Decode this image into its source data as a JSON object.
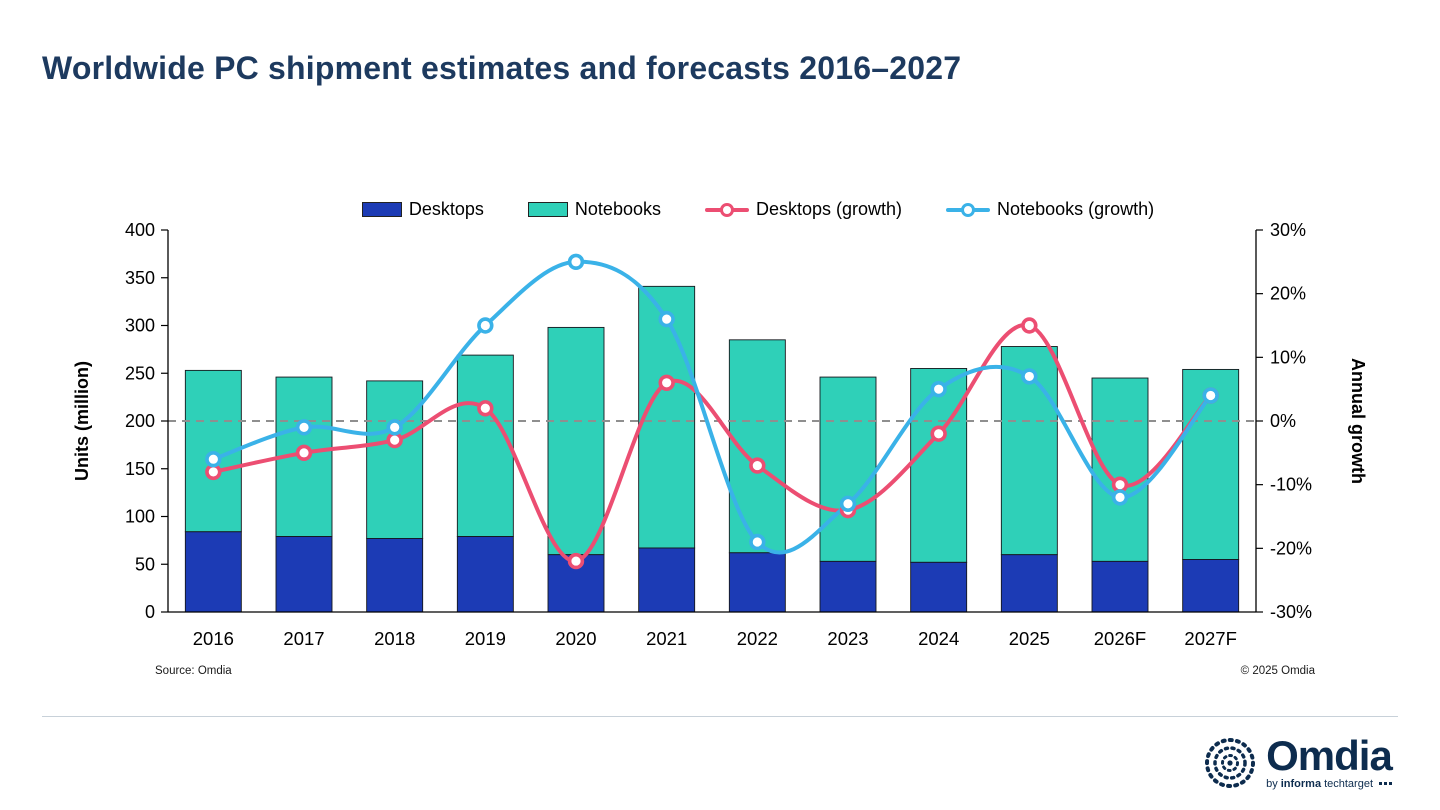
{
  "page": {
    "title": "Worldwide PC shipment estimates and forecasts 2016–2027",
    "source": "Source: Omdia",
    "copyright": "© 2025 Omdia"
  },
  "logo": {
    "wordmark": "Omdia",
    "by": "by",
    "informa": "informa",
    "techtarget": "techtarget"
  },
  "colors": {
    "title_text": "#1d3a5f",
    "brand_navy": "#0d2c4e",
    "desktops_bar": "#1c3bb5",
    "notebooks_bar": "#2fd0b8",
    "desktops_growth_line": "#ec4e72",
    "notebooks_growth_line": "#3ab2e8",
    "zero_line": "#8f8f8f"
  },
  "chart_data": {
    "type": "bar",
    "subtype": "stacked-bars-with-growth-lines",
    "title": "Worldwide PC shipment estimates and forecasts 2016–2027",
    "categories": [
      "2016",
      "2017",
      "2018",
      "2019",
      "2020",
      "2021",
      "2022",
      "2023",
      "2024",
      "2025",
      "2026F",
      "2027F"
    ],
    "bar_series": [
      {
        "name": "Desktops",
        "type": "bar",
        "axis": "left",
        "color": "#1c3bb5",
        "values": [
          84,
          79,
          77,
          79,
          60,
          67,
          62,
          53,
          52,
          60,
          53,
          55
        ]
      },
      {
        "name": "Notebooks",
        "type": "bar",
        "axis": "left",
        "color": "#2fd0b8",
        "values": [
          169,
          167,
          165,
          190,
          238,
          274,
          223,
          193,
          203,
          218,
          192,
          199
        ]
      }
    ],
    "stacked_totals": [
      253,
      246,
      242,
      269,
      298,
      341,
      285,
      246,
      255,
      278,
      245,
      254
    ],
    "line_series": [
      {
        "name": "Desktops (growth)",
        "type": "line",
        "axis": "right",
        "color": "#ec4e72",
        "values": [
          -8,
          -5,
          -3,
          2,
          -22,
          6,
          -7,
          -14,
          -2,
          15,
          -10,
          4
        ]
      },
      {
        "name": "Notebooks (growth)",
        "type": "line",
        "axis": "right",
        "color": "#3ab2e8",
        "values": [
          -6,
          -1,
          -1,
          15,
          25,
          16,
          -19,
          -13,
          5,
          7,
          -12,
          4
        ]
      }
    ],
    "left_axis": {
      "label": "Units (million)",
      "min": 0,
      "max": 400,
      "ticks": [
        400,
        350,
        300,
        250,
        200,
        150,
        100,
        50,
        0
      ]
    },
    "right_axis": {
      "label": "Annual growth",
      "min": -30,
      "max": 30,
      "suffix": "%",
      "ticks": [
        30,
        20,
        10,
        0,
        -10,
        -20,
        -30
      ]
    },
    "zero_growth_line": {
      "at": 0,
      "style": "dashed",
      "color": "#8f8f8f"
    },
    "legend_position": "top",
    "grid": "off"
  }
}
